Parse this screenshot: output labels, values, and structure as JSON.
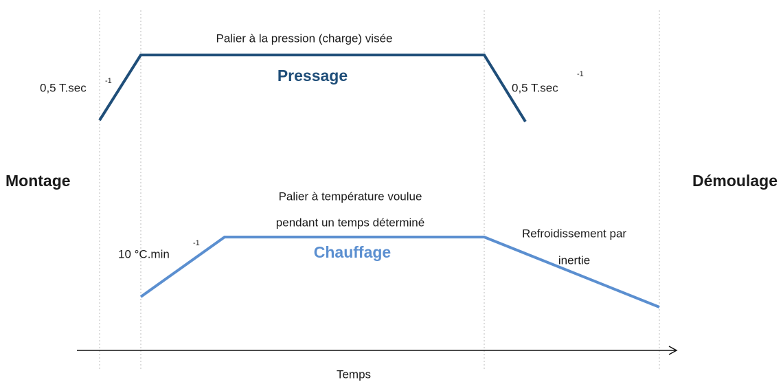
{
  "left_label": "Montage",
  "right_label": "Démoulage",
  "x_axis_label": "Temps",
  "pressage": {
    "title": "Pressage",
    "plateau_label": "Palier à la pression (charge) visée",
    "ramp_up_rate": {
      "text": "0,5 T.sec",
      "exponent": "-1"
    },
    "ramp_down_rate": {
      "text": "0,5 T.sec",
      "exponent": "-1"
    }
  },
  "chauffage": {
    "title": "Chauffage",
    "plateau_label": [
      "Palier à  température voulue",
      "pendant un temps déterminé"
    ],
    "ramp_up_rate": {
      "text": "10 °C.min",
      "exponent": "-1"
    },
    "cooling_label": [
      "Refroidissement par",
      "inertie"
    ]
  }
}
